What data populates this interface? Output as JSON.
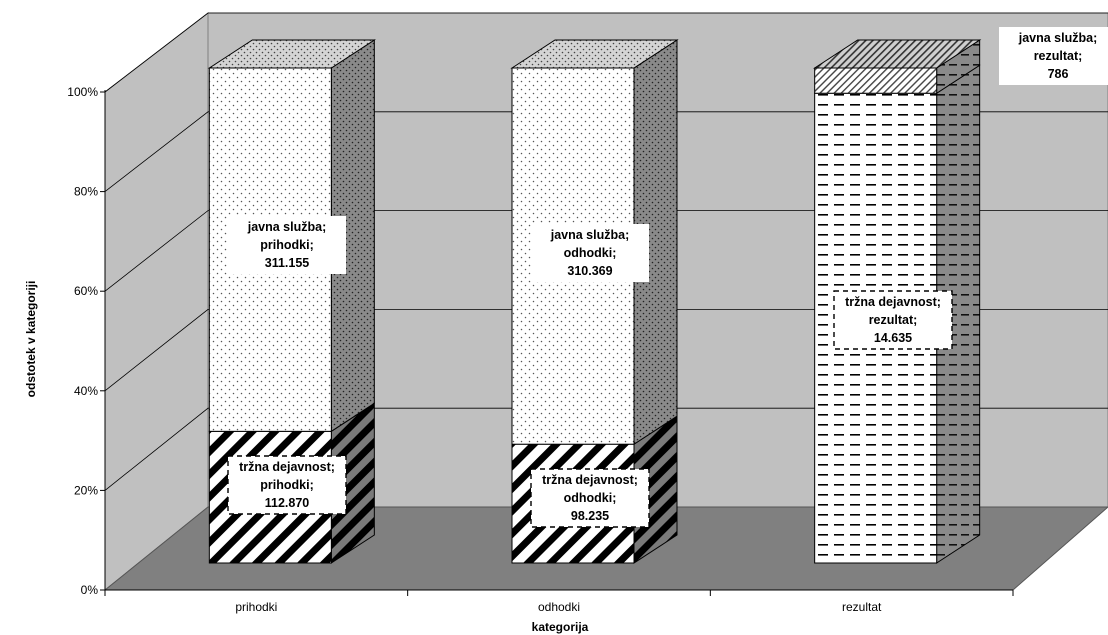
{
  "chart_data": {
    "type": "bar",
    "stacked": "percent",
    "three_d": true,
    "xlabel": "kategorija",
    "ylabel": "odstotek v kategoriji",
    "categories": [
      "prihodki",
      "odhodki",
      "rezultat"
    ],
    "y_ticks": [
      "0%",
      "20%",
      "40%",
      "60%",
      "80%",
      "100%"
    ],
    "ylim": [
      0,
      100
    ],
    "grid": true,
    "series": [
      {
        "name": "tržna dejavnost",
        "values": [
          112870,
          98235,
          14635
        ],
        "percents": [
          26.6,
          24.0,
          94.9
        ],
        "labels": [
          [
            "tržna dejavnost;",
            "prihodki;",
            "112.870"
          ],
          [
            "tržna dejavnost;",
            "odhodki;",
            "98.235"
          ],
          [
            "tržna dejavnost;",
            "rezultat;",
            "14.635"
          ]
        ]
      },
      {
        "name": "javna služba",
        "values": [
          311155,
          310369,
          786
        ],
        "percents": [
          73.4,
          76.0,
          5.1
        ],
        "labels": [
          [
            "javna služba;",
            "prihodki;",
            "311.155"
          ],
          [
            "javna služba;",
            "odhodki;",
            "310.369"
          ],
          [
            "javna služba;",
            "rezultat;",
            "786"
          ]
        ]
      }
    ]
  }
}
